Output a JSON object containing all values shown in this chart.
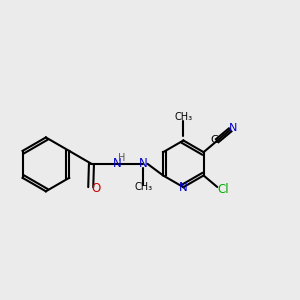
{
  "background_color": "#ebebeb",
  "bond_color": "#000000",
  "colors": {
    "C": "#000000",
    "N": "#0000cc",
    "O": "#cc0000",
    "Cl": "#00aa00",
    "H": "#555555",
    "bond": "#000000"
  }
}
